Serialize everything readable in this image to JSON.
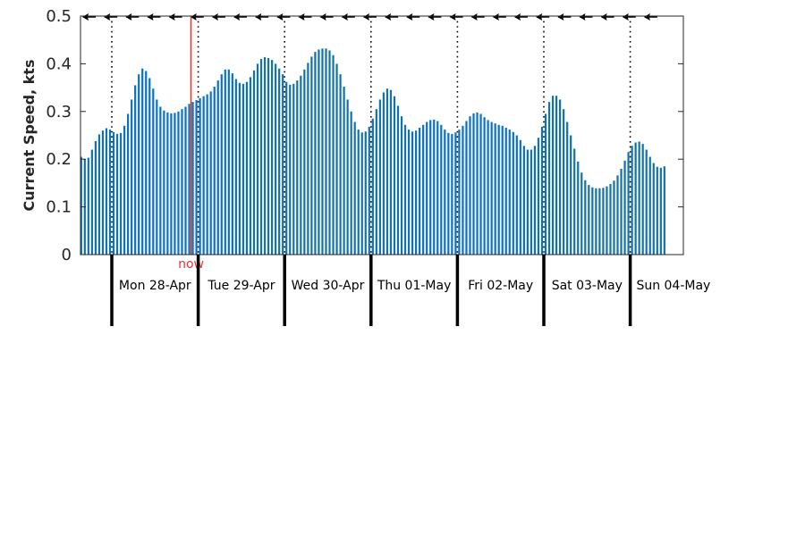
{
  "chart_data": {
    "type": "bar",
    "ylabel": "Current Speed, kts",
    "xlabel": "",
    "title": "",
    "ylim": [
      0,
      0.5
    ],
    "yticks": [
      "0",
      "0.1",
      "0.2",
      "0.3",
      "0.4",
      "0.5"
    ],
    "hours_per_bar": 1,
    "start_hour_before_first_day": 9,
    "days": [
      "Mon 28-Apr",
      "Tue 29-Apr",
      "Wed 30-Apr",
      "Thu 01-May",
      "Fri 02-May",
      "Sat 03-May",
      "Sun 04-May"
    ],
    "now": {
      "label": "now",
      "hour_offset": 22,
      "color": "#e8352b"
    },
    "bar_color": "#0e72b5",
    "values": [
      0.205,
      0.2,
      0.203,
      0.22,
      0.238,
      0.252,
      0.26,
      0.265,
      0.262,
      0.257,
      0.253,
      0.255,
      0.27,
      0.295,
      0.325,
      0.355,
      0.378,
      0.39,
      0.385,
      0.37,
      0.348,
      0.325,
      0.31,
      0.302,
      0.298,
      0.296,
      0.297,
      0.3,
      0.305,
      0.31,
      0.316,
      0.32,
      0.324,
      0.328,
      0.332,
      0.336,
      0.342,
      0.352,
      0.365,
      0.378,
      0.388,
      0.388,
      0.38,
      0.368,
      0.36,
      0.358,
      0.362,
      0.372,
      0.386,
      0.4,
      0.41,
      0.414,
      0.412,
      0.408,
      0.4,
      0.39,
      0.378,
      0.362,
      0.356,
      0.358,
      0.365,
      0.375,
      0.388,
      0.402,
      0.415,
      0.425,
      0.43,
      0.432,
      0.432,
      0.428,
      0.418,
      0.4,
      0.378,
      0.352,
      0.325,
      0.3,
      0.278,
      0.262,
      0.256,
      0.258,
      0.268,
      0.285,
      0.305,
      0.325,
      0.34,
      0.348,
      0.345,
      0.332,
      0.312,
      0.29,
      0.272,
      0.262,
      0.258,
      0.26,
      0.266,
      0.272,
      0.278,
      0.282,
      0.283,
      0.28,
      0.272,
      0.262,
      0.255,
      0.253,
      0.256,
      0.262,
      0.27,
      0.28,
      0.29,
      0.296,
      0.298,
      0.295,
      0.288,
      0.282,
      0.278,
      0.275,
      0.272,
      0.27,
      0.266,
      0.262,
      0.257,
      0.25,
      0.24,
      0.228,
      0.22,
      0.22,
      0.228,
      0.245,
      0.268,
      0.295,
      0.32,
      0.333,
      0.333,
      0.325,
      0.305,
      0.278,
      0.25,
      0.222,
      0.195,
      0.172,
      0.156,
      0.146,
      0.141,
      0.139,
      0.139,
      0.14,
      0.143,
      0.148,
      0.155,
      0.166,
      0.18,
      0.197,
      0.215,
      0.228,
      0.235,
      0.237,
      0.232,
      0.22,
      0.205,
      0.192,
      0.184,
      0.182,
      0.185
    ]
  }
}
